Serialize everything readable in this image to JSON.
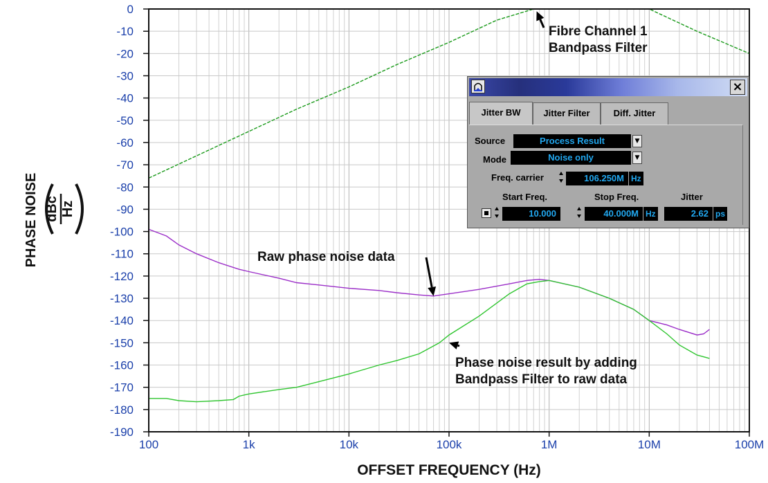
{
  "chart_data": {
    "type": "line",
    "x_scale": "log",
    "xlim": [
      100,
      100000000
    ],
    "ylim": [
      -190,
      0
    ],
    "ylabel": "PHASE NOISE",
    "ylabel_unit_num": "dBc",
    "ylabel_unit_den": "Hz",
    "xlabel": "OFFSET FREQUENCY (Hz)",
    "x_ticks": [
      {
        "value": 100,
        "label": "100"
      },
      {
        "value": 1000,
        "label": "1k"
      },
      {
        "value": 10000,
        "label": "10k"
      },
      {
        "value": 100000,
        "label": "100k"
      },
      {
        "value": 1000000,
        "label": "1M"
      },
      {
        "value": 10000000,
        "label": "10M"
      },
      {
        "value": 100000000,
        "label": "100M"
      }
    ],
    "y_ticks": [
      0,
      -10,
      -20,
      -30,
      -40,
      -50,
      -60,
      -70,
      -80,
      -90,
      -100,
      -110,
      -120,
      -130,
      -140,
      -150,
      -160,
      -170,
      -180,
      -190
    ],
    "grid": true,
    "series": [
      {
        "color": "#1a9a1a",
        "style": "dashed",
        "points": [
          [
            100,
            -76
          ],
          [
            300,
            -66
          ],
          [
            1000,
            -55
          ],
          [
            3000,
            -45
          ],
          [
            10000,
            -35
          ],
          [
            30000,
            -25
          ],
          [
            100000,
            -15
          ],
          [
            300000,
            -5
          ],
          [
            700000,
            0
          ],
          [
            10000000,
            0
          ],
          [
            30000000,
            -10
          ],
          [
            100000000,
            -20
          ]
        ]
      },
      {
        "color": "#9b2ec8",
        "style": "solid",
        "points": [
          [
            100,
            -99
          ],
          [
            150,
            -102
          ],
          [
            200,
            -106
          ],
          [
            300,
            -110
          ],
          [
            500,
            -114
          ],
          [
            800,
            -117
          ],
          [
            1000,
            -118
          ],
          [
            2000,
            -121
          ],
          [
            3000,
            -123
          ],
          [
            5000,
            -124
          ],
          [
            10000,
            -125.5
          ],
          [
            20000,
            -126.5
          ],
          [
            30000,
            -127.5
          ],
          [
            50000,
            -128.5
          ],
          [
            70000,
            -129
          ],
          [
            100000,
            -128
          ],
          [
            200000,
            -126
          ],
          [
            400000,
            -123.5
          ],
          [
            600000,
            -122
          ],
          [
            800000,
            -121.5
          ],
          [
            1000000,
            -122
          ],
          [
            2000000,
            -125
          ],
          [
            4000000,
            -130
          ],
          [
            7000000,
            -135
          ],
          [
            10000000,
            -140
          ],
          [
            15000000,
            -142
          ],
          [
            20000000,
            -144
          ],
          [
            30000000,
            -146.5
          ],
          [
            35000000,
            -146
          ],
          [
            40000000,
            -144
          ]
        ]
      },
      {
        "color": "#2ec52e",
        "style": "solid",
        "points": [
          [
            100,
            -175
          ],
          [
            150,
            -175
          ],
          [
            200,
            -176
          ],
          [
            300,
            -176.5
          ],
          [
            500,
            -176
          ],
          [
            700,
            -175.5
          ],
          [
            800,
            -174
          ],
          [
            1000,
            -173
          ],
          [
            2000,
            -171
          ],
          [
            3000,
            -170
          ],
          [
            5000,
            -167.5
          ],
          [
            10000,
            -164
          ],
          [
            20000,
            -160
          ],
          [
            30000,
            -158
          ],
          [
            50000,
            -155
          ],
          [
            80000,
            -150
          ],
          [
            100000,
            -146.5
          ],
          [
            200000,
            -138
          ],
          [
            400000,
            -128
          ],
          [
            600000,
            -123.5
          ],
          [
            800000,
            -122.5
          ],
          [
            1000000,
            -122
          ],
          [
            2000000,
            -125
          ],
          [
            4000000,
            -130
          ],
          [
            7000000,
            -135
          ],
          [
            10000000,
            -140
          ],
          [
            15000000,
            -146
          ],
          [
            20000000,
            -151
          ],
          [
            30000000,
            -155.5
          ],
          [
            40000000,
            -157
          ]
        ]
      }
    ],
    "annotations": [
      {
        "lines": [
          "Fibre Channel 1",
          "Bandpass Filter"
        ],
        "arrow_to": [
          750000,
          -1
        ]
      },
      {
        "lines": [
          "Raw phase noise data"
        ],
        "arrow_to": [
          70000,
          -129
        ]
      },
      {
        "lines": [
          "Phase noise result by adding",
          "Bandpass Filter to raw data"
        ],
        "arrow_to": [
          100000,
          -150
        ]
      }
    ]
  },
  "dialog": {
    "close_label": "×",
    "tabs": [
      "Jitter BW",
      "Jitter Filter",
      "Diff. Jitter"
    ],
    "source_label": "Source",
    "source_value": "Process Result",
    "mode_label": "Mode",
    "mode_value": "Noise only",
    "carrier_label": "Freq. carrier",
    "carrier_value": "106.250M",
    "carrier_unit": "Hz",
    "start_label": "Start Freq.",
    "start_value": "10.000",
    "stop_label": "Stop Freq.",
    "stop_value": "40.000M",
    "stop_unit": "Hz",
    "jitter_label": "Jitter",
    "jitter_value": "2.62",
    "jitter_unit": "ps"
  }
}
